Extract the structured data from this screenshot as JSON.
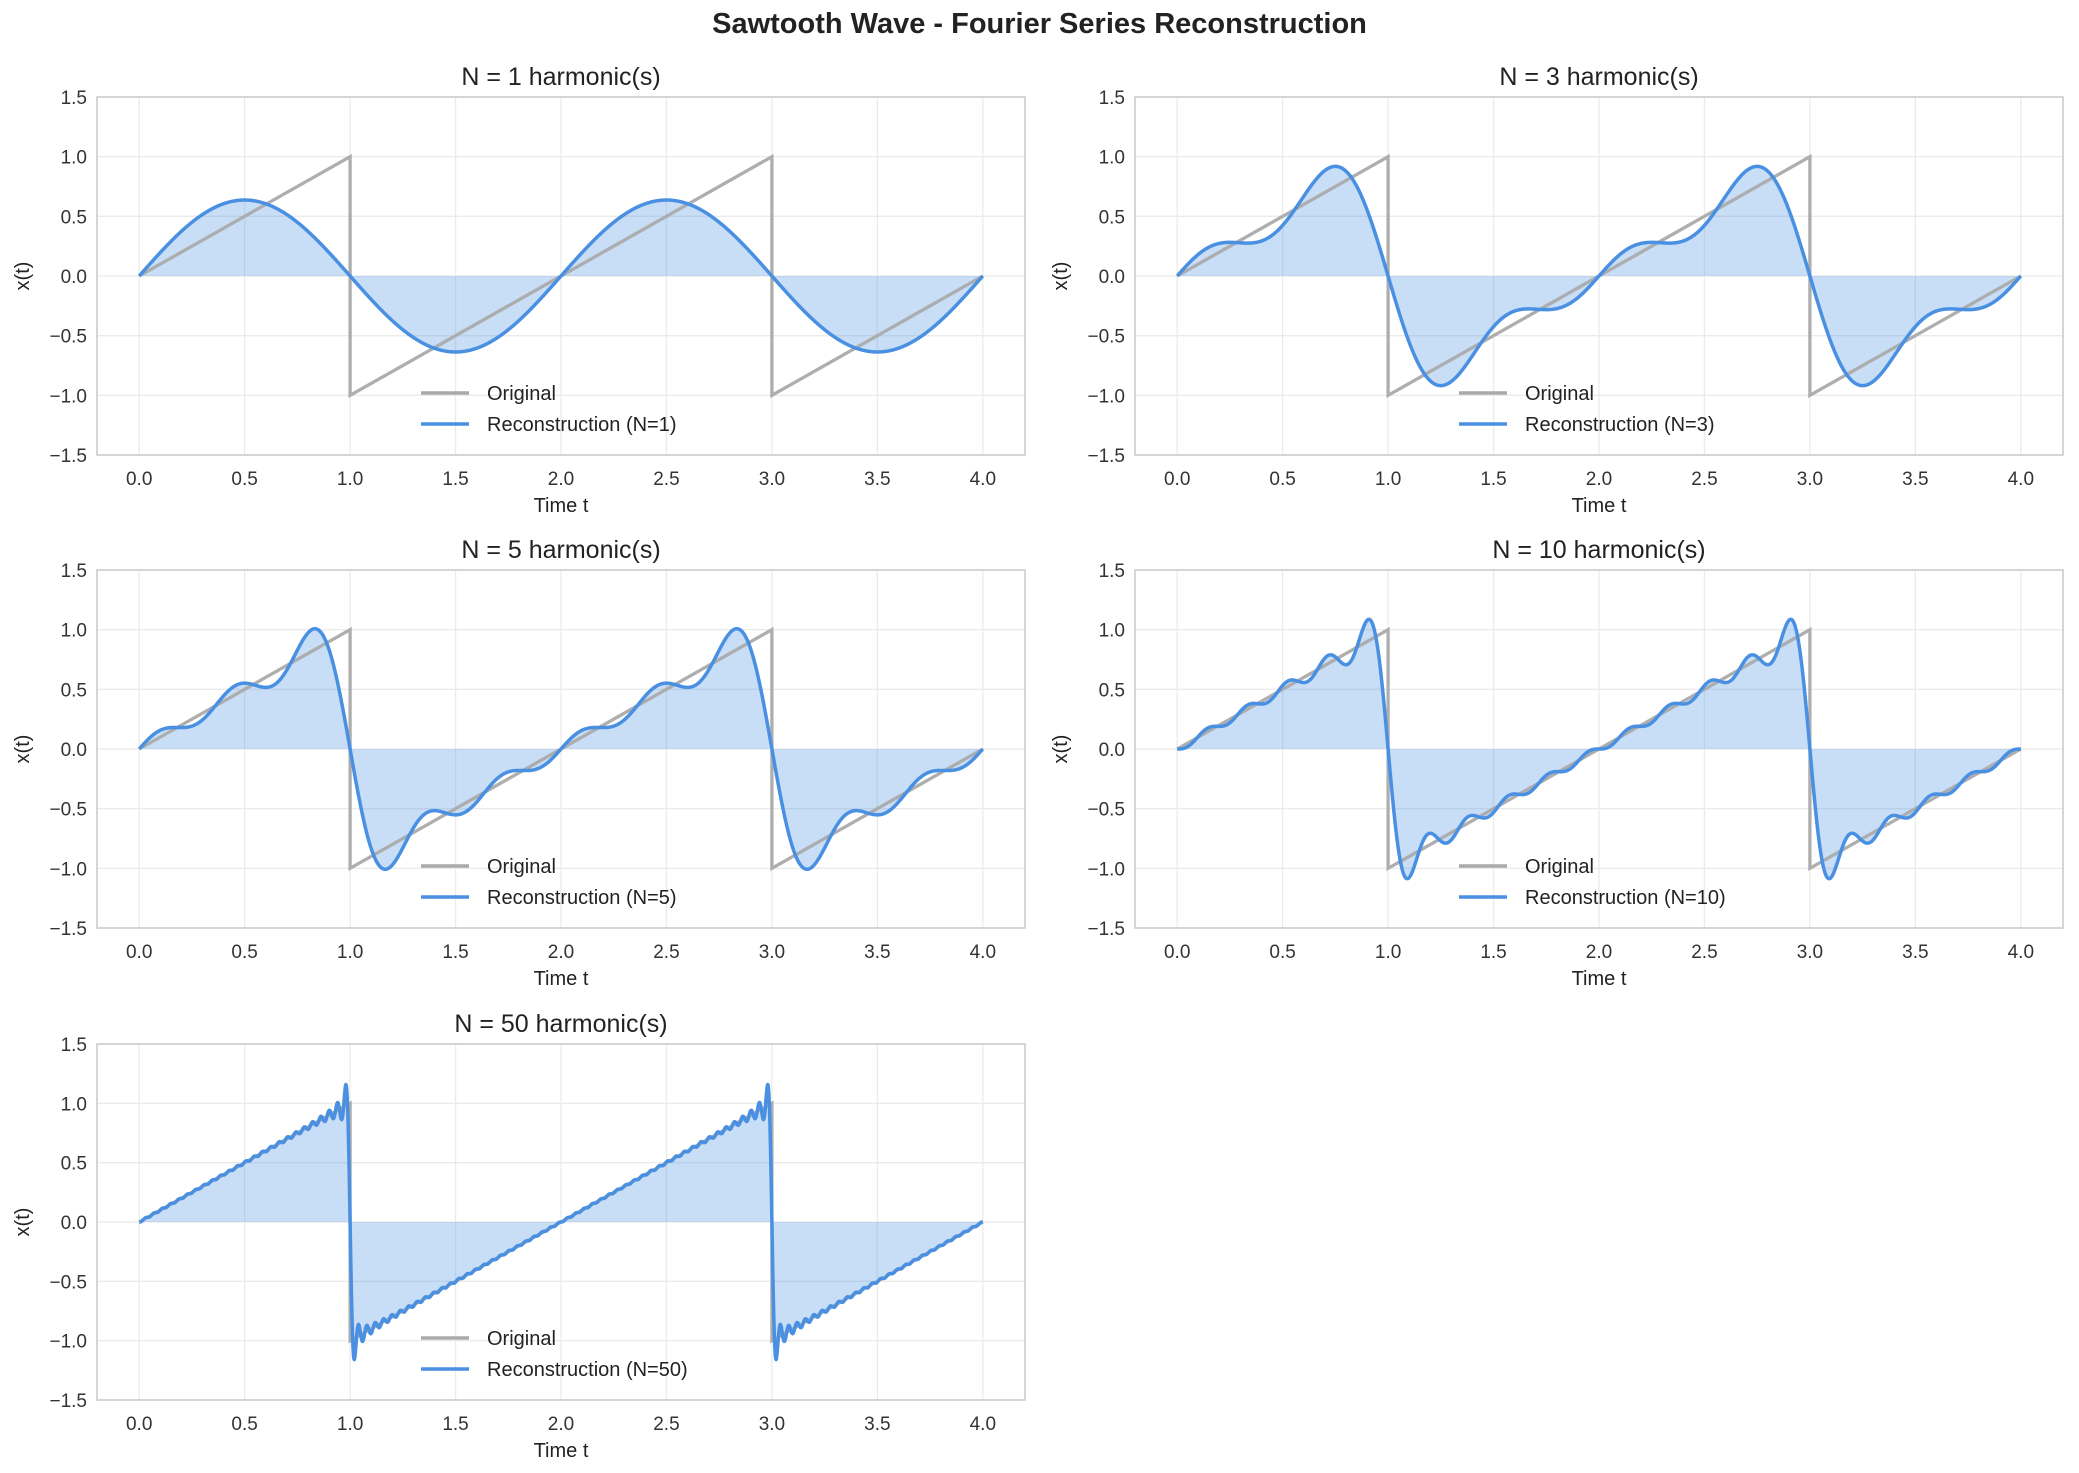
{
  "title": "Sawtooth Wave - Fourier Series Reconstruction",
  "colors": {
    "original": "#aaaaaa",
    "reconstruction": "#4a90e2",
    "fill": "#4a90e2",
    "grid": "#ebebeb",
    "spine": "#cccccc"
  },
  "chart_data": [
    {
      "type": "line",
      "title": "N = 1 harmonic(s)",
      "n_harmonics": 1,
      "xlabel": "Time t",
      "ylabel": "x(t)",
      "xlim": [
        -0.2,
        4.2
      ],
      "ylim": [
        -1.5,
        1.5
      ],
      "xticks": [
        "0.0",
        "0.5",
        "1.0",
        "1.5",
        "2.0",
        "2.5",
        "3.0",
        "3.5",
        "4.0"
      ],
      "yticks": [
        "1.5",
        "1.0",
        "0.5",
        "0.0",
        "−0.5",
        "−1.0",
        "−1.5"
      ],
      "grid": true,
      "legend_position": "lower center",
      "series": [
        {
          "name": "Original",
          "x": [
            0,
            1,
            1,
            3,
            3,
            4
          ],
          "y": [
            0,
            1,
            -1,
            1,
            -1,
            0
          ]
        },
        {
          "name": "Reconstruction (N=1)",
          "model": "sawtooth Fourier series, N terms, fill to 0"
        }
      ]
    },
    {
      "type": "line",
      "title": "N = 3 harmonic(s)",
      "n_harmonics": 3,
      "xlabel": "Time t",
      "ylabel": "x(t)",
      "xlim": [
        -0.2,
        4.2
      ],
      "ylim": [
        -1.5,
        1.5
      ],
      "xticks": [
        "0.0",
        "0.5",
        "1.0",
        "1.5",
        "2.0",
        "2.5",
        "3.0",
        "3.5",
        "4.0"
      ],
      "yticks": [
        "1.5",
        "1.0",
        "0.5",
        "0.0",
        "−0.5",
        "−1.0",
        "−1.5"
      ],
      "grid": true,
      "legend_position": "lower center",
      "series": [
        {
          "name": "Original",
          "x": [
            0,
            1,
            1,
            3,
            3,
            4
          ],
          "y": [
            0,
            1,
            -1,
            1,
            -1,
            0
          ]
        },
        {
          "name": "Reconstruction (N=3)",
          "model": "sawtooth Fourier series, N terms, fill to 0"
        }
      ]
    },
    {
      "type": "line",
      "title": "N = 5 harmonic(s)",
      "n_harmonics": 5,
      "xlabel": "Time t",
      "ylabel": "x(t)",
      "xlim": [
        -0.2,
        4.2
      ],
      "ylim": [
        -1.5,
        1.5
      ],
      "xticks": [
        "0.0",
        "0.5",
        "1.0",
        "1.5",
        "2.0",
        "2.5",
        "3.0",
        "3.5",
        "4.0"
      ],
      "yticks": [
        "1.5",
        "1.0",
        "0.5",
        "0.0",
        "−0.5",
        "−1.0",
        "−1.5"
      ],
      "grid": true,
      "legend_position": "lower center",
      "series": [
        {
          "name": "Original",
          "x": [
            0,
            1,
            1,
            3,
            3,
            4
          ],
          "y": [
            0,
            1,
            -1,
            1,
            -1,
            0
          ]
        },
        {
          "name": "Reconstruction (N=5)",
          "model": "sawtooth Fourier series, N terms, fill to 0"
        }
      ]
    },
    {
      "type": "line",
      "title": "N = 10 harmonic(s)",
      "n_harmonics": 10,
      "xlabel": "Time t",
      "ylabel": "x(t)",
      "xlim": [
        -0.2,
        4.2
      ],
      "ylim": [
        -1.5,
        1.5
      ],
      "xticks": [
        "0.0",
        "0.5",
        "1.0",
        "1.5",
        "2.0",
        "2.5",
        "3.0",
        "3.5",
        "4.0"
      ],
      "yticks": [
        "1.5",
        "1.0",
        "0.5",
        "0.0",
        "−0.5",
        "−1.0",
        "−1.5"
      ],
      "grid": true,
      "legend_position": "lower center",
      "series": [
        {
          "name": "Original",
          "x": [
            0,
            1,
            1,
            3,
            3,
            4
          ],
          "y": [
            0,
            1,
            -1,
            1,
            -1,
            0
          ]
        },
        {
          "name": "Reconstruction (N=10)",
          "model": "sawtooth Fourier series, N terms, fill to 0"
        }
      ]
    },
    {
      "type": "line",
      "title": "N = 50 harmonic(s)",
      "n_harmonics": 50,
      "xlabel": "Time t",
      "ylabel": "x(t)",
      "xlim": [
        -0.2,
        4.2
      ],
      "ylim": [
        -1.5,
        1.5
      ],
      "xticks": [
        "0.0",
        "0.5",
        "1.0",
        "1.5",
        "2.0",
        "2.5",
        "3.0",
        "3.5",
        "4.0"
      ],
      "yticks": [
        "1.5",
        "1.0",
        "0.5",
        "0.0",
        "−0.5",
        "−1.0",
        "−1.5"
      ],
      "grid": true,
      "legend_position": "lower center",
      "series": [
        {
          "name": "Original",
          "x": [
            0,
            1,
            1,
            3,
            3,
            4
          ],
          "y": [
            0,
            1,
            -1,
            1,
            -1,
            0
          ]
        },
        {
          "name": "Reconstruction (N=50)",
          "model": "sawtooth Fourier series, N terms, fill to 0"
        }
      ]
    }
  ]
}
